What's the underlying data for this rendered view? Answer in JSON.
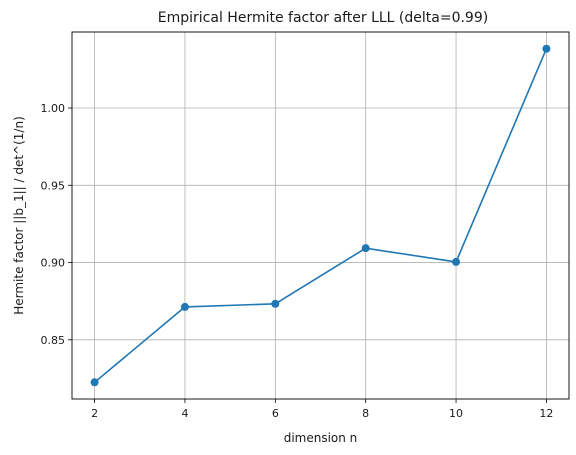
{
  "chart_data": {
    "type": "line",
    "title": "Empirical Hermite factor after LLL (delta=0.99)",
    "xlabel": "dimension n",
    "ylabel": "Hermite factor  ||b_1|| / det^(1/n)",
    "x": [
      2,
      4,
      6,
      8,
      10,
      12
    ],
    "series": [
      {
        "values": [
          0.8225,
          0.8713,
          0.8733,
          0.9093,
          0.9004,
          1.0384
        ]
      }
    ],
    "xticks": [
      "2",
      "4",
      "6",
      "8",
      "10",
      "12"
    ],
    "yticks": [
      "0.85",
      "0.90",
      "0.95",
      "1.00"
    ],
    "xtick_values": [
      2,
      4,
      6,
      8,
      10,
      12
    ],
    "ytick_values": [
      0.85,
      0.9,
      0.95,
      1.0
    ],
    "xlim": [
      1.5,
      12.5
    ],
    "ylim": [
      0.8117,
      1.0492
    ],
    "grid": true,
    "line_color": "#1f77b4",
    "marker": "circle"
  }
}
